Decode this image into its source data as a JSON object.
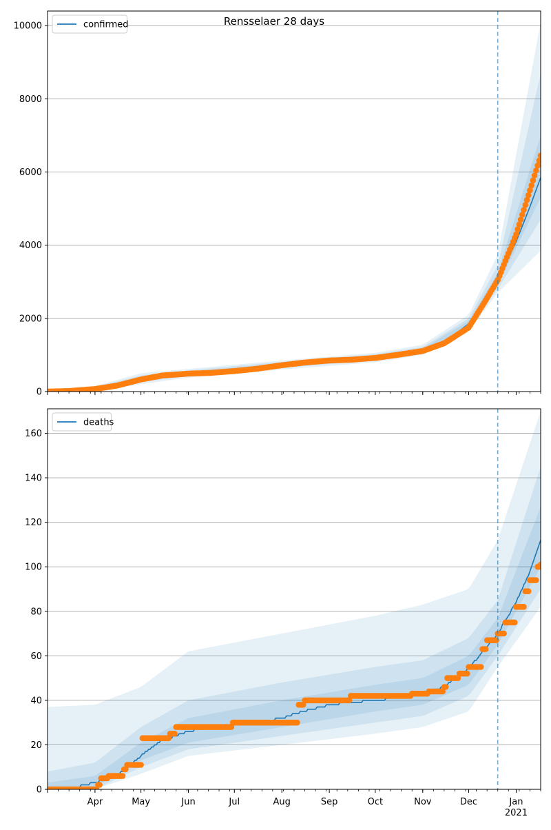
{
  "figure": {
    "title": "Rensselaer 28 days"
  },
  "colors": {
    "model": "#1f77b4",
    "observed": "#ff7f0e",
    "band": "#1f77b4",
    "grid": "#b0b0b0",
    "forecast_line": "#1f77b4"
  },
  "chart_data": [
    {
      "type": "line",
      "title": "Rensselaer 28 days",
      "x_range": [
        "2020-03-01",
        "2021-01-17"
      ],
      "forecast_start": "2020-12-20",
      "ylim": [
        0,
        10400
      ],
      "yticks": [
        0,
        2000,
        4000,
        6000,
        8000,
        10000
      ],
      "grid": "horizontal",
      "legend": {
        "placement": "top-left",
        "entries": [
          "confirmed"
        ]
      },
      "series": [
        {
          "name": "confirmed",
          "kind": "model-line",
          "points": [
            [
              "2020-03-01",
              0
            ],
            [
              "2020-03-15",
              20
            ],
            [
              "2020-04-01",
              80
            ],
            [
              "2020-04-15",
              170
            ],
            [
              "2020-05-01",
              350
            ],
            [
              "2020-05-15",
              450
            ],
            [
              "2020-06-01",
              500
            ],
            [
              "2020-06-15",
              520
            ],
            [
              "2020-07-01",
              570
            ],
            [
              "2020-07-15",
              630
            ],
            [
              "2020-08-01",
              730
            ],
            [
              "2020-08-15",
              800
            ],
            [
              "2020-09-01",
              860
            ],
            [
              "2020-09-15",
              880
            ],
            [
              "2020-10-01",
              930
            ],
            [
              "2020-10-15",
              1010
            ],
            [
              "2020-11-01",
              1130
            ],
            [
              "2020-11-15",
              1350
            ],
            [
              "2020-12-01",
              1850
            ],
            [
              "2020-12-10",
              2450
            ],
            [
              "2020-12-20",
              3050
            ],
            [
              "2021-01-01",
              4100
            ],
            [
              "2021-01-10",
              5050
            ],
            [
              "2021-01-17",
              5850
            ]
          ]
        },
        {
          "kind": "observed-points",
          "points": [
            [
              "2020-03-01",
              0
            ],
            [
              "2020-03-15",
              15
            ],
            [
              "2020-04-01",
              70
            ],
            [
              "2020-04-15",
              160
            ],
            [
              "2020-05-01",
              330
            ],
            [
              "2020-05-15",
              440
            ],
            [
              "2020-06-01",
              490
            ],
            [
              "2020-06-15",
              510
            ],
            [
              "2020-07-01",
              560
            ],
            [
              "2020-07-15",
              620
            ],
            [
              "2020-08-01",
              720
            ],
            [
              "2020-08-15",
              790
            ],
            [
              "2020-09-01",
              850
            ],
            [
              "2020-09-15",
              870
            ],
            [
              "2020-10-01",
              920
            ],
            [
              "2020-10-15",
              1000
            ],
            [
              "2020-11-01",
              1110
            ],
            [
              "2020-11-15",
              1320
            ],
            [
              "2020-12-01",
              1750
            ],
            [
              "2020-12-10",
              2350
            ],
            [
              "2020-12-20",
              3050
            ],
            [
              "2021-01-01",
              4300
            ],
            [
              "2021-01-10",
              5500
            ],
            [
              "2021-01-17",
              6450
            ]
          ]
        }
      ],
      "bands": [
        {
          "lower": [
            [
              "2020-03-01",
              0
            ],
            [
              "2020-04-01",
              0
            ],
            [
              "2020-05-01",
              200
            ],
            [
              "2020-06-01",
              380
            ],
            [
              "2020-08-01",
              600
            ],
            [
              "2020-10-01",
              800
            ],
            [
              "2020-11-01",
              1000
            ],
            [
              "2020-12-01",
              1650
            ],
            [
              "2020-12-20",
              2700
            ],
            [
              "2021-01-17",
              3850
            ]
          ],
          "upper": [
            [
              "2020-03-01",
              60
            ],
            [
              "2020-04-01",
              150
            ],
            [
              "2020-05-01",
              500
            ],
            [
              "2020-06-01",
              620
            ],
            [
              "2020-08-01",
              850
            ],
            [
              "2020-10-01",
              1060
            ],
            [
              "2020-11-01",
              1280
            ],
            [
              "2020-12-01",
              2100
            ],
            [
              "2020-12-20",
              3750
            ],
            [
              "2021-01-17",
              10100
            ]
          ]
        },
        {
          "lower": [
            [
              "2020-03-01",
              0
            ],
            [
              "2020-04-01",
              20
            ],
            [
              "2020-05-01",
              260
            ],
            [
              "2020-06-01",
              420
            ],
            [
              "2020-08-01",
              650
            ],
            [
              "2020-10-01",
              850
            ],
            [
              "2020-11-01",
              1050
            ],
            [
              "2020-12-01",
              1700
            ],
            [
              "2020-12-20",
              2800
            ],
            [
              "2021-01-17",
              4700
            ]
          ],
          "upper": [
            [
              "2020-03-01",
              40
            ],
            [
              "2020-04-01",
              120
            ],
            [
              "2020-05-01",
              440
            ],
            [
              "2020-06-01",
              580
            ],
            [
              "2020-08-01",
              810
            ],
            [
              "2020-10-01",
              1020
            ],
            [
              "2020-11-01",
              1220
            ],
            [
              "2020-12-01",
              2000
            ],
            [
              "2020-12-20",
              3450
            ],
            [
              "2021-01-17",
              8700
            ]
          ]
        },
        {
          "lower": [
            [
              "2020-03-01",
              0
            ],
            [
              "2020-04-01",
              40
            ],
            [
              "2020-05-01",
              300
            ],
            [
              "2020-06-01",
              460
            ],
            [
              "2020-08-01",
              690
            ],
            [
              "2020-10-01",
              890
            ],
            [
              "2020-11-01",
              1090
            ],
            [
              "2020-12-01",
              1760
            ],
            [
              "2020-12-20",
              2900
            ],
            [
              "2021-01-17",
              5300
            ]
          ],
          "upper": [
            [
              "2020-03-01",
              25
            ],
            [
              "2020-04-01",
              100
            ],
            [
              "2020-05-01",
              400
            ],
            [
              "2020-06-01",
              540
            ],
            [
              "2020-08-01",
              770
            ],
            [
              "2020-10-01",
              980
            ],
            [
              "2020-11-01",
              1180
            ],
            [
              "2020-12-01",
              1930
            ],
            [
              "2020-12-20",
              3250
            ],
            [
              "2021-01-17",
              7000
            ]
          ]
        }
      ]
    },
    {
      "type": "line",
      "title": "",
      "x_range": [
        "2020-03-01",
        "2021-01-17"
      ],
      "forecast_start": "2020-12-20",
      "ylim": [
        0,
        171
      ],
      "yticks": [
        0,
        20,
        40,
        60,
        80,
        100,
        120,
        140,
        160
      ],
      "xticks": [
        "Apr",
        "May",
        "Jun",
        "Jul",
        "Aug",
        "Sep",
        "Oct",
        "Nov",
        "Dec",
        "Jan"
      ],
      "xtick_dates": [
        "2020-04-01",
        "2020-05-01",
        "2020-06-01",
        "2020-07-01",
        "2020-08-01",
        "2020-09-01",
        "2020-10-01",
        "2020-11-01",
        "2020-12-01",
        "2021-01-01"
      ],
      "xtick_sublabel": "2021",
      "grid": "horizontal",
      "legend": {
        "placement": "top-left",
        "entries": [
          "deaths"
        ]
      },
      "series": [
        {
          "name": "deaths",
          "kind": "model-line",
          "points": [
            [
              "2020-03-01",
              0
            ],
            [
              "2020-03-20",
              1
            ],
            [
              "2020-04-01",
              3
            ],
            [
              "2020-04-15",
              6
            ],
            [
              "2020-05-01",
              15
            ],
            [
              "2020-05-15",
              22
            ],
            [
              "2020-06-01",
              26
            ],
            [
              "2020-06-15",
              28
            ],
            [
              "2020-07-01",
              29
            ],
            [
              "2020-07-15",
              30
            ],
            [
              "2020-08-01",
              32
            ],
            [
              "2020-08-15",
              35
            ],
            [
              "2020-09-01",
              38
            ],
            [
              "2020-09-15",
              39
            ],
            [
              "2020-10-01",
              40
            ],
            [
              "2020-10-15",
              41
            ],
            [
              "2020-11-01",
              43
            ],
            [
              "2020-11-15",
              46
            ],
            [
              "2020-12-01",
              54
            ],
            [
              "2020-12-10",
              62
            ],
            [
              "2020-12-20",
              70
            ],
            [
              "2021-01-01",
              84
            ],
            [
              "2021-01-10",
              98
            ],
            [
              "2021-01-17",
              112
            ]
          ]
        },
        {
          "kind": "observed-points",
          "points": [
            [
              "2020-03-01",
              0
            ],
            [
              "2020-03-31",
              0
            ],
            [
              "2020-04-03",
              2
            ],
            [
              "2020-04-05",
              5
            ],
            [
              "2020-04-10",
              6
            ],
            [
              "2020-04-20",
              9
            ],
            [
              "2020-04-22",
              11
            ],
            [
              "2020-05-02",
              23
            ],
            [
              "2020-05-20",
              25
            ],
            [
              "2020-05-24",
              28
            ],
            [
              "2020-06-30",
              30
            ],
            [
              "2020-08-12",
              38
            ],
            [
              "2020-08-16",
              40
            ],
            [
              "2020-09-15",
              42
            ],
            [
              "2020-10-25",
              43
            ],
            [
              "2020-11-05",
              44
            ],
            [
              "2020-11-15",
              46
            ],
            [
              "2020-11-17",
              50
            ],
            [
              "2020-11-25",
              52
            ],
            [
              "2020-12-01",
              55
            ],
            [
              "2020-12-10",
              63
            ],
            [
              "2020-12-13",
              67
            ],
            [
              "2020-12-20",
              70
            ],
            [
              "2020-12-25",
              75
            ],
            [
              "2021-01-01",
              82
            ],
            [
              "2021-01-07",
              89
            ],
            [
              "2021-01-10",
              94
            ],
            [
              "2021-01-15",
              100
            ],
            [
              "2021-01-17",
              101
            ]
          ]
        }
      ],
      "bands": [
        {
          "lower": [
            [
              "2020-03-01",
              0
            ],
            [
              "2020-04-01",
              0
            ],
            [
              "2020-05-01",
              7
            ],
            [
              "2020-06-01",
              15
            ],
            [
              "2020-08-01",
              20
            ],
            [
              "2020-10-01",
              25
            ],
            [
              "2020-11-01",
              28
            ],
            [
              "2020-12-01",
              35
            ],
            [
              "2020-12-20",
              55
            ],
            [
              "2021-01-17",
              82
            ]
          ],
          "upper": [
            [
              "2020-03-01",
              37
            ],
            [
              "2020-04-01",
              38
            ],
            [
              "2020-05-01",
              46
            ],
            [
              "2020-06-01",
              62
            ],
            [
              "2020-08-01",
              70
            ],
            [
              "2020-10-01",
              78
            ],
            [
              "2020-11-01",
              83
            ],
            [
              "2020-12-01",
              90
            ],
            [
              "2020-12-20",
              112
            ],
            [
              "2021-01-17",
              170
            ]
          ]
        },
        {
          "lower": [
            [
              "2020-03-01",
              0
            ],
            [
              "2020-04-01",
              0
            ],
            [
              "2020-05-01",
              10
            ],
            [
              "2020-06-01",
              18
            ],
            [
              "2020-08-01",
              24
            ],
            [
              "2020-10-01",
              30
            ],
            [
              "2020-11-01",
              33
            ],
            [
              "2020-12-01",
              42
            ],
            [
              "2020-12-20",
              60
            ],
            [
              "2021-01-17",
              90
            ]
          ],
          "upper": [
            [
              "2020-03-01",
              8
            ],
            [
              "2020-04-01",
              12
            ],
            [
              "2020-05-01",
              28
            ],
            [
              "2020-06-01",
              40
            ],
            [
              "2020-08-01",
              48
            ],
            [
              "2020-10-01",
              55
            ],
            [
              "2020-11-01",
              58
            ],
            [
              "2020-12-01",
              68
            ],
            [
              "2020-12-20",
              85
            ],
            [
              "2021-01-17",
              145
            ]
          ]
        },
        {
          "lower": [
            [
              "2020-03-01",
              0
            ],
            [
              "2020-04-01",
              1
            ],
            [
              "2020-05-01",
              13
            ],
            [
              "2020-06-01",
              21
            ],
            [
              "2020-08-01",
              28
            ],
            [
              "2020-10-01",
              35
            ],
            [
              "2020-11-01",
              38
            ],
            [
              "2020-12-01",
              47
            ],
            [
              "2020-12-20",
              65
            ],
            [
              "2021-01-17",
              100
            ]
          ],
          "upper": [
            [
              "2020-03-01",
              3
            ],
            [
              "2020-04-01",
              6
            ],
            [
              "2020-05-01",
              21
            ],
            [
              "2020-06-01",
              32
            ],
            [
              "2020-08-01",
              40
            ],
            [
              "2020-10-01",
              47
            ],
            [
              "2020-11-01",
              50
            ],
            [
              "2020-12-01",
              60
            ],
            [
              "2020-12-20",
              77
            ],
            [
              "2021-01-17",
              127
            ]
          ]
        }
      ]
    }
  ]
}
